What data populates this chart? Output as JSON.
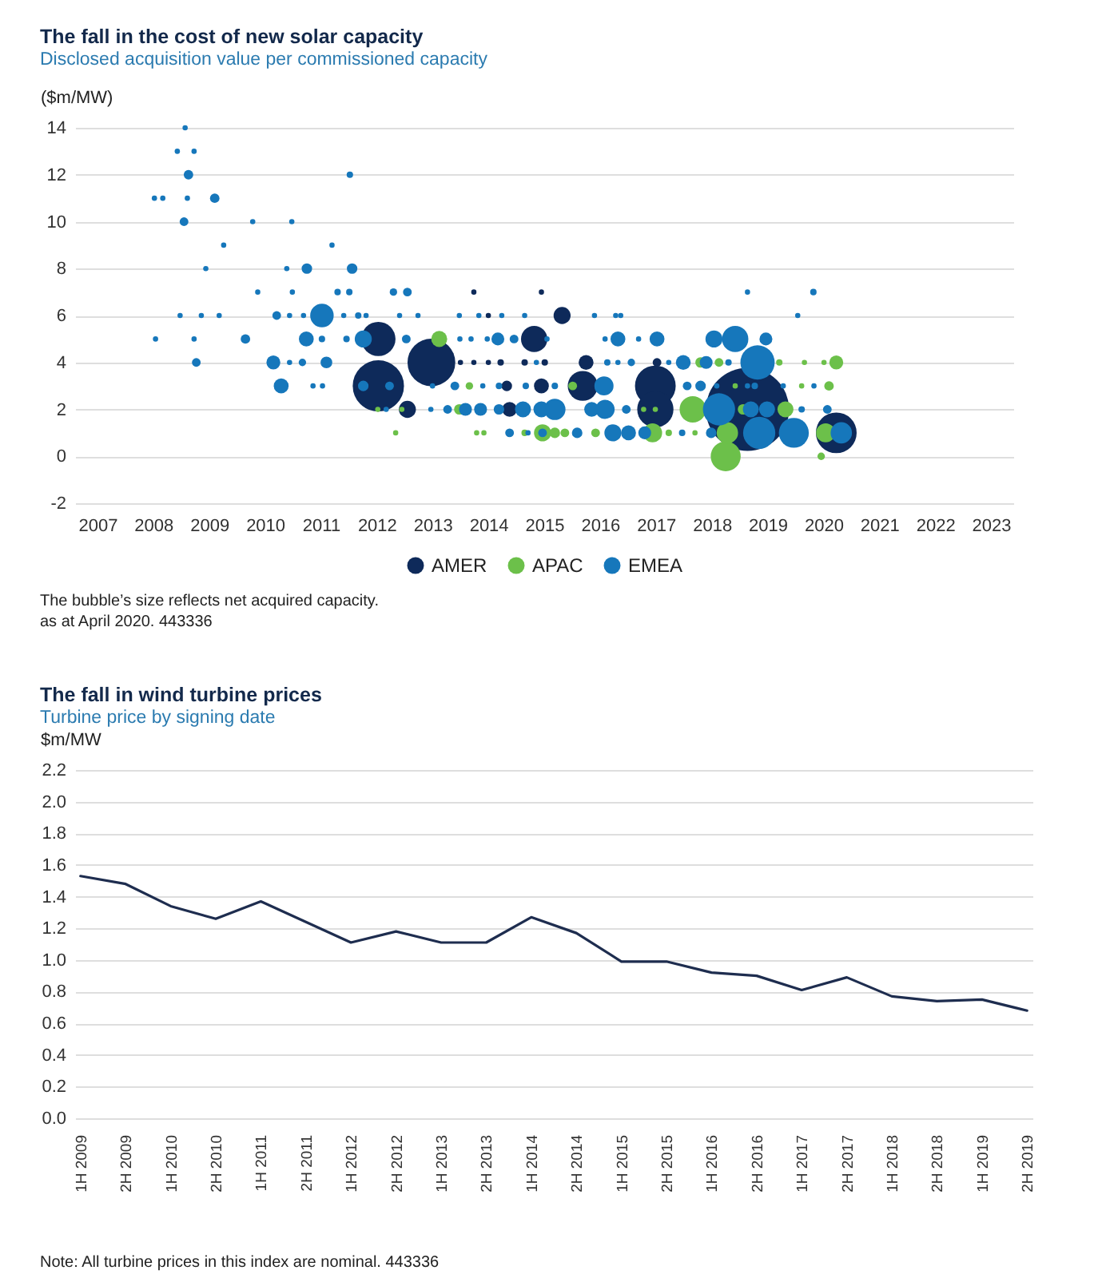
{
  "chart_data": [
    {
      "type": "bubble",
      "title": "The fall in the cost of new solar capacity",
      "subtitle": "Disclosed acquisition value per commissioned capacity",
      "ylabel": "($m/MW)",
      "xlim": [
        2006.6,
        2023.4
      ],
      "xticks": [
        2007,
        2008,
        2009,
        2010,
        2011,
        2012,
        2013,
        2014,
        2015,
        2016,
        2017,
        2018,
        2019,
        2020,
        2021,
        2022,
        2023
      ],
      "ylim": [
        -2,
        14
      ],
      "yticks": [
        -2,
        0,
        2,
        4,
        6,
        8,
        10,
        12,
        14
      ],
      "grid": "y",
      "legend": "bottom",
      "series": [
        {
          "name": "AMER",
          "color": "#0e2a5a",
          "x": [
            2018.64,
            2012.03,
            2012.98,
            2016.99,
            2020.23,
            2016.99,
            2012.03,
            2015.69,
            2014.82,
            2015.32,
            2012.55,
            2015.75,
            2014.95,
            2014.38,
            2014.33,
            2017.02,
            2014,
            2013.74,
            2014.95,
            2013.5,
            2013.74,
            2014,
            2014.22,
            2014.65,
            2015.01
          ],
          "values": [
            2,
            3,
            4,
            3,
            1,
            2,
            5,
            3,
            5,
            6,
            2,
            4,
            3,
            2,
            3,
            4,
            6,
            7,
            7,
            4,
            4,
            4,
            4,
            4,
            4
          ],
          "sizes": [
            1,
            0.38,
            0.33,
            0.24,
            0.24,
            0.19,
            0.17,
            0.13,
            0.1,
            0.042,
            0.042,
            0.032,
            0.032,
            0.032,
            0.016,
            0.011,
            0.004,
            0.004,
            0.004,
            0.004,
            0.004,
            0.004,
            0.006,
            0.006,
            0.006
          ]
        },
        {
          "name": "APAC",
          "color": "#6cc04a",
          "x": [
            2018.25,
            2017.66,
            2018.28,
            2016.94,
            2020.04,
            2014.97,
            2013.12,
            2019.32,
            2020.23,
            2013.48,
            2015.19,
            2017.8,
            2018.56,
            2020.1,
            2018.13,
            2015.51,
            2015.37,
            2015.92,
            2013.66,
            2019.96,
            2014.65,
            2019.21,
            2017.23,
            2012.45,
            2013.79,
            2020.01,
            2018.42,
            2016.78,
            2016.99,
            2017.7,
            2012.34,
            2012.02,
            2013.92,
            2019.61,
            2019.66
          ],
          "values": [
            0,
            2,
            1,
            1,
            1,
            1,
            5,
            2,
            4,
            2,
            1,
            4,
            2,
            3,
            4,
            3,
            1,
            1,
            3,
            0,
            1,
            4,
            1,
            2,
            1,
            4,
            3,
            2,
            2,
            1,
            1,
            2,
            1,
            3,
            4
          ],
          "sizes": [
            0.13,
            0.1,
            0.066,
            0.053,
            0.053,
            0.042,
            0.037,
            0.037,
            0.028,
            0.016,
            0.016,
            0.016,
            0.016,
            0.013,
            0.011,
            0.011,
            0.011,
            0.011,
            0.008,
            0.008,
            0.006,
            0.006,
            0.006,
            0.004,
            0.004,
            0.004,
            0.004,
            0.004,
            0.004,
            0.004,
            0.004,
            0.004,
            0.004,
            0.004,
            0.004
          ]
        },
        {
          "name": "EMEA",
          "color": "#1677bb",
          "x": [
            2018.82,
            2018.13,
            2018.85,
            2019.47,
            2018.42,
            2011.02,
            2015.19,
            2020.32,
            2016.07,
            2016.09,
            2011.76,
            2018.04,
            2016.23,
            2014.62,
            2014.95,
            2018.7,
            2018.99,
            2010.74,
            2010.29,
            2016.32,
            2017.02,
            2017.49,
            2015.85,
            2016.51,
            2010.15,
            2014.17,
            2013.59,
            2013.86,
            2018.97,
            2017.9,
            2016.8,
            2011.1,
            2010.75,
            2011.56,
            2011.76,
            2014.19,
            2017.8,
            2015.59,
            2017.99,
            2008.63,
            2009.1,
            2009.65,
            2008.55,
            2012.55,
            2010.21,
            2012.53,
            2014.46,
            2008.77,
            2012.23,
            2013.4,
            2013.27,
            2014.38,
            2014.97,
            2017.56,
            2016.47,
            2020.07,
            2012.3,
            2010.67,
            2016.56,
            2011.52,
            2011.3,
            2011.51,
            2011.67,
            2011.02,
            2011.46,
            2014.19,
            2014.67,
            2015.19,
            2019.82,
            2016.13,
            2018.3,
            2018.77,
            2019.61,
            2017.47,
            2008.43,
            2008.02,
            2008.17,
            2009.78,
            2010.49,
            2010.44,
            2011.41,
            2011.81,
            2012.41,
            2012.74,
            2013.48,
            2013.83,
            2014.65,
            2013,
            2013.9,
            2014.71,
            2018.64,
            2016.09,
            2019.83,
            2010.48,
            2010.39,
            2009.18,
            2010.69,
            2008.73,
            2013.49,
            2013.98,
            2015.05,
            2014.86,
            2010.86,
            2012.97,
            2016.28,
            2019.54,
            2018.64,
            2019.28,
            2009.26,
            2011.2,
            2008.94,
            2008.86,
            2014.24,
            2008.04,
            2013.69,
            2012.17,
            2016.37,
            2016.32,
            2017.23,
            2018.09,
            2008.57,
            2008.73,
            2008.61,
            2008.48,
            2010.44,
            2011.03,
            2015.9,
            2016.69,
            2009.87
          ],
          "values": [
            4,
            2,
            1,
            1,
            5,
            6,
            2,
            1,
            3,
            2,
            5,
            5,
            1,
            2,
            2,
            2,
            2,
            5,
            3,
            5,
            5,
            4,
            2,
            1,
            4,
            5,
            2,
            2,
            5,
            4,
            1,
            4,
            8,
            8,
            3,
            2,
            3,
            1,
            1,
            12,
            11,
            5,
            10,
            7,
            6,
            5,
            5,
            4,
            3,
            3,
            2,
            1,
            1,
            3,
            2,
            2,
            7,
            4,
            4,
            12,
            7,
            7,
            6,
            5,
            5,
            3,
            3,
            3,
            7,
            4,
            4,
            3,
            2,
            1,
            13,
            11,
            11,
            10,
            7,
            6,
            6,
            6,
            6,
            6,
            6,
            6,
            6,
            3,
            3,
            1,
            7,
            5,
            3,
            10,
            8,
            6,
            6,
            5,
            5,
            5,
            5,
            4,
            3,
            2,
            6,
            6,
            3,
            3,
            9,
            9,
            8,
            6,
            6,
            5,
            5,
            2,
            6,
            4,
            4,
            3,
            14,
            13,
            11,
            6,
            4,
            3,
            6,
            5,
            7
          ],
          "sizes": [
            0.17,
            0.15,
            0.15,
            0.13,
            0.1,
            0.08,
            0.066,
            0.066,
            0.053,
            0.053,
            0.042,
            0.042,
            0.042,
            0.037,
            0.037,
            0.037,
            0.037,
            0.032,
            0.032,
            0.032,
            0.032,
            0.032,
            0.032,
            0.032,
            0.028,
            0.024,
            0.024,
            0.024,
            0.024,
            0.024,
            0.024,
            0.02,
            0.016,
            0.016,
            0.016,
            0.016,
            0.016,
            0.016,
            0.016,
            0.013,
            0.013,
            0.013,
            0.011,
            0.011,
            0.011,
            0.011,
            0.011,
            0.011,
            0.011,
            0.011,
            0.011,
            0.011,
            0.011,
            0.011,
            0.011,
            0.011,
            0.008,
            0.008,
            0.008,
            0.006,
            0.006,
            0.006,
            0.006,
            0.006,
            0.006,
            0.006,
            0.006,
            0.006,
            0.006,
            0.006,
            0.006,
            0.006,
            0.006,
            0.006,
            0.004,
            0.004,
            0.004,
            0.004,
            0.004,
            0.004,
            0.004,
            0.004,
            0.004,
            0.004,
            0.004,
            0.004,
            0.004,
            0.004,
            0.004,
            0.004,
            0.004,
            0.004,
            0.004,
            0.004,
            0.004,
            0.004,
            0.004,
            0.004,
            0.004,
            0.004,
            0.004,
            0.004,
            0.004,
            0.004,
            0.004,
            0.004,
            0.004,
            0.004,
            0.004,
            0.004,
            0.004,
            0.004,
            0.004,
            0.004,
            0.004,
            0.004,
            0.004,
            0.004,
            0.004,
            0.004,
            0.004,
            0.004,
            0.004,
            0.004,
            0.004,
            0.004,
            0.004,
            0.004,
            0.004
          ]
        }
      ],
      "annotations": [
        "The bubble’s size reflects net acquired capacity.",
        "as at April 2020. 443336"
      ]
    },
    {
      "type": "line",
      "title": "The fall in wind turbine prices",
      "subtitle": "Turbine price by signing date",
      "ylabel": "$m/MW",
      "categories": [
        "1H 2009",
        "2H 2009",
        "1H 2010",
        "2H 2010",
        "1H 2011",
        "2H 2011",
        "1H 2012",
        "2H 2012",
        "1H 2013",
        "2H 2013",
        "1H 2014",
        "2H 2014",
        "1H 2015",
        "2H 2015",
        "1H 2016",
        "2H 2016",
        "1H 2017",
        "2H 2017",
        "1H 2018",
        "2H 2018",
        "1H 2019",
        "2H 2019"
      ],
      "values": [
        1.53,
        1.48,
        1.34,
        1.26,
        1.37,
        1.24,
        1.11,
        1.18,
        1.11,
        1.11,
        1.27,
        1.17,
        0.99,
        0.99,
        0.92,
        0.9,
        0.81,
        0.89,
        0.77,
        0.74,
        0.75,
        0.68
      ],
      "color": "#1e2d4f",
      "ylim": [
        0,
        2.2
      ],
      "yticks": [
        {
          "value": 0,
          "label": "0.0"
        },
        0.2,
        0.4,
        0.6,
        0.8,
        {
          "value": 1,
          "label": "1.0"
        },
        1.2,
        1.4,
        1.6,
        1.8,
        {
          "value": 2,
          "label": "2.0"
        },
        2.2
      ],
      "grid": "y",
      "annotations": [
        "Note: All turbine prices in this index are nominal. 443336"
      ]
    }
  ]
}
